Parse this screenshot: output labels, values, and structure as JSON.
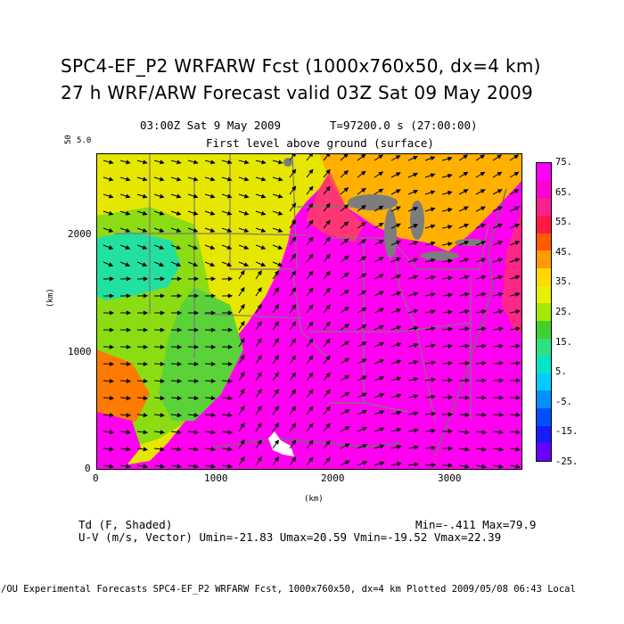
{
  "title": {
    "line1": "SPC4-EF_P2 WRFARW Fcst (1000x760x50, dx=4 km)",
    "line2": "27 h WRF/ARW Forecast valid 03Z Sat 09 May 2009"
  },
  "header": {
    "valid_time": "03:00Z Sat  9 May 2009",
    "time_seconds": "T=97200.0 s (27:00:00)",
    "level": "First level above ground (surface)",
    "vector_ref_a": "50",
    "vector_ref_b": "5.0"
  },
  "axes": {
    "x_ticks": [
      "0",
      "1000",
      "2000",
      "3000"
    ],
    "y_ticks": [
      "0",
      "1000",
      "2000"
    ],
    "x_label": "(km)",
    "y_label": "(km)"
  },
  "colorbar": {
    "labels": [
      "75.",
      "65.",
      "55.",
      "45.",
      "35.",
      "25.",
      "15.",
      "5.",
      "-5.",
      "-15.",
      "-25."
    ],
    "colors": [
      "#6a00ff",
      "#1a1aff",
      "#0050ff",
      "#0090ff",
      "#00ccff",
      "#00e6c8",
      "#30e080",
      "#40d030",
      "#a8e800",
      "#e6f000",
      "#ffd800",
      "#ff9a00",
      "#ff5a00",
      "#ff1a40",
      "#ff2090",
      "#ff00d0",
      "#ff00ff"
    ]
  },
  "footer": {
    "field1": "Td (F, Shaded)",
    "minmax": "Min=-.411 Max=79.9",
    "field2": "U-V (m/s, Vector)  Umin=-21.83 Umax=20.59 Vmin=-19.52 Vmax=22.39",
    "credit": "/OU Experimental Forecasts  SPC4-EF_P2 WRFARW Fcst, 1000x760x50, dx=4 km  Plotted 2009/05/08 06:43 Local"
  }
}
